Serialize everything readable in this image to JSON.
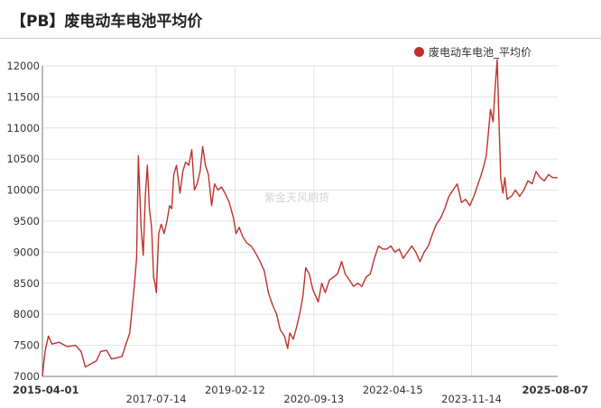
{
  "header": {
    "title": "【PB】废电动车电池平均价"
  },
  "watermark": "紫金天风期货",
  "colors": {
    "series": "#c0312b",
    "grid": "#e3e3e3",
    "axis": "#777777",
    "text": "#333333"
  },
  "chart_data": {
    "type": "line",
    "title": "【PB】废电动车电池平均价",
    "xlabel": "",
    "ylabel": "",
    "x_range": [
      "2015-04-01",
      "2025-08-07"
    ],
    "ylim": [
      7000,
      12000
    ],
    "yticks": [
      7000,
      7500,
      8000,
      8500,
      9000,
      9500,
      10000,
      10500,
      11000,
      11500,
      12000
    ],
    "xticks": [
      {
        "date": "2015-04-01",
        "label": "2015-04-01",
        "bold": true
      },
      {
        "date": "2017-07-14",
        "label": "2017-07-14",
        "bold": false
      },
      {
        "date": "2019-02-12",
        "label": "2019-02-12",
        "bold": false
      },
      {
        "date": "2020-09-13",
        "label": "2020-09-13",
        "bold": false
      },
      {
        "date": "2022-04-15",
        "label": "2022-04-15",
        "bold": false
      },
      {
        "date": "2023-11-14",
        "label": "2023-11-14",
        "bold": false
      },
      {
        "date": "2025-08-07",
        "label": "2025-08-07",
        "bold": true
      }
    ],
    "grid": true,
    "legend": "top-right",
    "series": [
      {
        "name": "废电动车电池_平均价",
        "color": "#c0312b",
        "points": [
          [
            "2015-04-01",
            7000
          ],
          [
            "2015-04-20",
            7400
          ],
          [
            "2015-05-15",
            7650
          ],
          [
            "2015-06-10",
            7520
          ],
          [
            "2015-08-01",
            7550
          ],
          [
            "2015-10-01",
            7480
          ],
          [
            "2015-12-01",
            7500
          ],
          [
            "2016-01-10",
            7400
          ],
          [
            "2016-02-10",
            7150
          ],
          [
            "2016-03-20",
            7200
          ],
          [
            "2016-05-01",
            7250
          ],
          [
            "2016-06-01",
            7400
          ],
          [
            "2016-07-15",
            7420
          ],
          [
            "2016-08-20",
            7280
          ],
          [
            "2016-10-01",
            7300
          ],
          [
            "2016-11-05",
            7320
          ],
          [
            "2016-12-01",
            7500
          ],
          [
            "2017-01-01",
            7700
          ],
          [
            "2017-02-01",
            8400
          ],
          [
            "2017-02-20",
            8900
          ],
          [
            "2017-03-05",
            10550
          ],
          [
            "2017-03-25",
            9400
          ],
          [
            "2017-04-10",
            8950
          ],
          [
            "2017-04-25",
            9900
          ],
          [
            "2017-05-10",
            10400
          ],
          [
            "2017-05-25",
            9700
          ],
          [
            "2017-06-10",
            9400
          ],
          [
            "2017-06-25",
            8600
          ],
          [
            "2017-07-05",
            8500
          ],
          [
            "2017-07-15",
            8350
          ],
          [
            "2017-08-01",
            9300
          ],
          [
            "2017-08-20",
            9450
          ],
          [
            "2017-09-10",
            9300
          ],
          [
            "2017-10-01",
            9500
          ],
          [
            "2017-10-20",
            9750
          ],
          [
            "2017-11-05",
            9700
          ],
          [
            "2017-11-20",
            10250
          ],
          [
            "2017-12-10",
            10400
          ],
          [
            "2018-01-05",
            9950
          ],
          [
            "2018-01-25",
            10300
          ],
          [
            "2018-02-15",
            10450
          ],
          [
            "2018-03-10",
            10400
          ],
          [
            "2018-04-01",
            10650
          ],
          [
            "2018-04-20",
            10000
          ],
          [
            "2018-05-10",
            10100
          ],
          [
            "2018-06-01",
            10300
          ],
          [
            "2018-06-20",
            10700
          ],
          [
            "2018-07-10",
            10400
          ],
          [
            "2018-08-01",
            10250
          ],
          [
            "2018-08-25",
            9750
          ],
          [
            "2018-09-15",
            10100
          ],
          [
            "2018-10-10",
            10000
          ],
          [
            "2018-11-05",
            10050
          ],
          [
            "2018-12-01",
            9950
          ],
          [
            "2019-01-01",
            9800
          ],
          [
            "2019-02-01",
            9550
          ],
          [
            "2019-02-20",
            9300
          ],
          [
            "2019-03-15",
            9400
          ],
          [
            "2019-04-10",
            9250
          ],
          [
            "2019-05-10",
            9150
          ],
          [
            "2019-06-10",
            9100
          ],
          [
            "2019-07-10",
            9000
          ],
          [
            "2019-08-15",
            8850
          ],
          [
            "2019-09-15",
            8700
          ],
          [
            "2019-10-15",
            8350
          ],
          [
            "2019-11-15",
            8150
          ],
          [
            "2019-12-15",
            8000
          ],
          [
            "2020-01-10",
            7750
          ],
          [
            "2020-02-10",
            7650
          ],
          [
            "2020-03-05",
            7450
          ],
          [
            "2020-03-20",
            7700
          ],
          [
            "2020-04-15",
            7600
          ],
          [
            "2020-05-10",
            7800
          ],
          [
            "2020-06-05",
            8050
          ],
          [
            "2020-06-25",
            8300
          ],
          [
            "2020-07-15",
            8750
          ],
          [
            "2020-08-10",
            8650
          ],
          [
            "2020-09-05",
            8400
          ],
          [
            "2020-09-25",
            8300
          ],
          [
            "2020-10-15",
            8200
          ],
          [
            "2020-11-10",
            8500
          ],
          [
            "2020-12-05",
            8350
          ],
          [
            "2021-01-05",
            8550
          ],
          [
            "2021-02-05",
            8600
          ],
          [
            "2021-03-05",
            8650
          ],
          [
            "2021-04-05",
            8850
          ],
          [
            "2021-05-01",
            8650
          ],
          [
            "2021-06-01",
            8550
          ],
          [
            "2021-07-01",
            8450
          ],
          [
            "2021-08-01",
            8500
          ],
          [
            "2021-09-01",
            8450
          ],
          [
            "2021-10-01",
            8600
          ],
          [
            "2021-11-01",
            8650
          ],
          [
            "2021-12-01",
            8900
          ],
          [
            "2022-01-01",
            9100
          ],
          [
            "2022-02-01",
            9050
          ],
          [
            "2022-03-01",
            9050
          ],
          [
            "2022-04-01",
            9100
          ],
          [
            "2022-05-01",
            9000
          ],
          [
            "2022-06-01",
            9050
          ],
          [
            "2022-07-01",
            8900
          ],
          [
            "2022-08-01",
            9000
          ],
          [
            "2022-09-01",
            9100
          ],
          [
            "2022-10-01",
            9000
          ],
          [
            "2022-11-01",
            8850
          ],
          [
            "2022-12-01",
            9000
          ],
          [
            "2023-01-01",
            9100
          ],
          [
            "2023-02-01",
            9300
          ],
          [
            "2023-03-01",
            9450
          ],
          [
            "2023-04-01",
            9550
          ],
          [
            "2023-05-01",
            9700
          ],
          [
            "2023-06-01",
            9900
          ],
          [
            "2023-07-01",
            10000
          ],
          [
            "2023-08-01",
            10100
          ],
          [
            "2023-09-01",
            9800
          ],
          [
            "2023-10-01",
            9850
          ],
          [
            "2023-11-01",
            9750
          ],
          [
            "2023-12-01",
            9900
          ],
          [
            "2024-01-01",
            10100
          ],
          [
            "2024-02-01",
            10300
          ],
          [
            "2024-03-01",
            10550
          ],
          [
            "2024-04-01",
            11300
          ],
          [
            "2024-04-20",
            11100
          ],
          [
            "2024-05-05",
            11650
          ],
          [
            "2024-05-20",
            12100
          ],
          [
            "2024-06-01",
            11200
          ],
          [
            "2024-06-15",
            10200
          ],
          [
            "2024-07-01",
            9950
          ],
          [
            "2024-07-15",
            10200
          ],
          [
            "2024-08-01",
            9850
          ],
          [
            "2024-09-01",
            9900
          ],
          [
            "2024-10-01",
            10000
          ],
          [
            "2024-11-01",
            9900
          ],
          [
            "2024-12-01",
            10000
          ],
          [
            "2025-01-01",
            10150
          ],
          [
            "2025-02-01",
            10100
          ],
          [
            "2025-03-01",
            10300
          ],
          [
            "2025-04-01",
            10200
          ],
          [
            "2025-05-01",
            10150
          ],
          [
            "2025-06-01",
            10250
          ],
          [
            "2025-07-01",
            10200
          ],
          [
            "2025-08-07",
            10200
          ]
        ]
      }
    ]
  }
}
